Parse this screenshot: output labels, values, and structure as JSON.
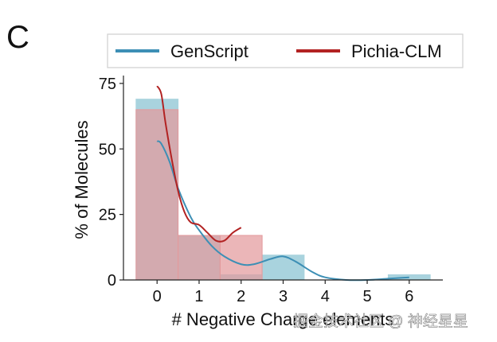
{
  "panel_letter": "C",
  "watermark": "掘金技术社区 @ 神经星星",
  "colors": {
    "genscript_line": "#3d8fb5",
    "genscript_bar": "#a9d3de",
    "pichia_line": "#b22222",
    "pichia_bar": "#e39a9c",
    "overlap": "#c09aa6"
  },
  "chart_data": {
    "type": "bar",
    "xlabel": "# Negative Charge elements",
    "ylabel": "% of Molecules",
    "xticks": [
      0,
      1,
      2,
      3,
      4,
      5,
      6
    ],
    "yticks": [
      0,
      25,
      50,
      75
    ],
    "xlim": [
      -0.8,
      6.8
    ],
    "ylim": [
      0,
      78
    ],
    "legend": {
      "placement": "top",
      "entries": [
        "GenScript",
        "Pichia-CLM"
      ]
    },
    "series": [
      {
        "name": "GenScript",
        "bins": [
          {
            "from": -0.5,
            "to": 0.5,
            "value": 69
          },
          {
            "from": 0.5,
            "to": 1.5,
            "value": 17
          },
          {
            "from": 1.5,
            "to": 2.5,
            "value": 2
          },
          {
            "from": 2.5,
            "to": 3.5,
            "value": 9.5
          },
          {
            "from": 5.5,
            "to": 6.5,
            "value": 2
          }
        ],
        "kde": {
          "x": [
            0,
            0.1,
            0.3,
            0.5,
            0.8,
            1.0,
            1.3,
            1.6,
            2.0,
            2.3,
            2.7,
            3.0,
            3.3,
            3.7,
            4.0,
            4.5,
            5.0,
            5.5,
            6.0
          ],
          "y": [
            53,
            52,
            45,
            35,
            24,
            19,
            13,
            9,
            6,
            6,
            8,
            9,
            7,
            3,
            1,
            0,
            0,
            0.5,
            1
          ]
        }
      },
      {
        "name": "Pichia-CLM",
        "bins": [
          {
            "from": -0.5,
            "to": 0.5,
            "value": 65
          },
          {
            "from": 0.5,
            "to": 1.5,
            "value": 17
          },
          {
            "from": 1.5,
            "to": 2.5,
            "value": 17
          }
        ],
        "kde": {
          "x": [
            0,
            0.1,
            0.2,
            0.35,
            0.5,
            0.65,
            0.8,
            1.0,
            1.2,
            1.4,
            1.6,
            1.8,
            2.0
          ],
          "y": [
            74,
            71,
            60,
            46,
            34,
            26,
            22,
            21,
            18,
            15,
            15,
            18,
            20
          ]
        }
      }
    ]
  }
}
